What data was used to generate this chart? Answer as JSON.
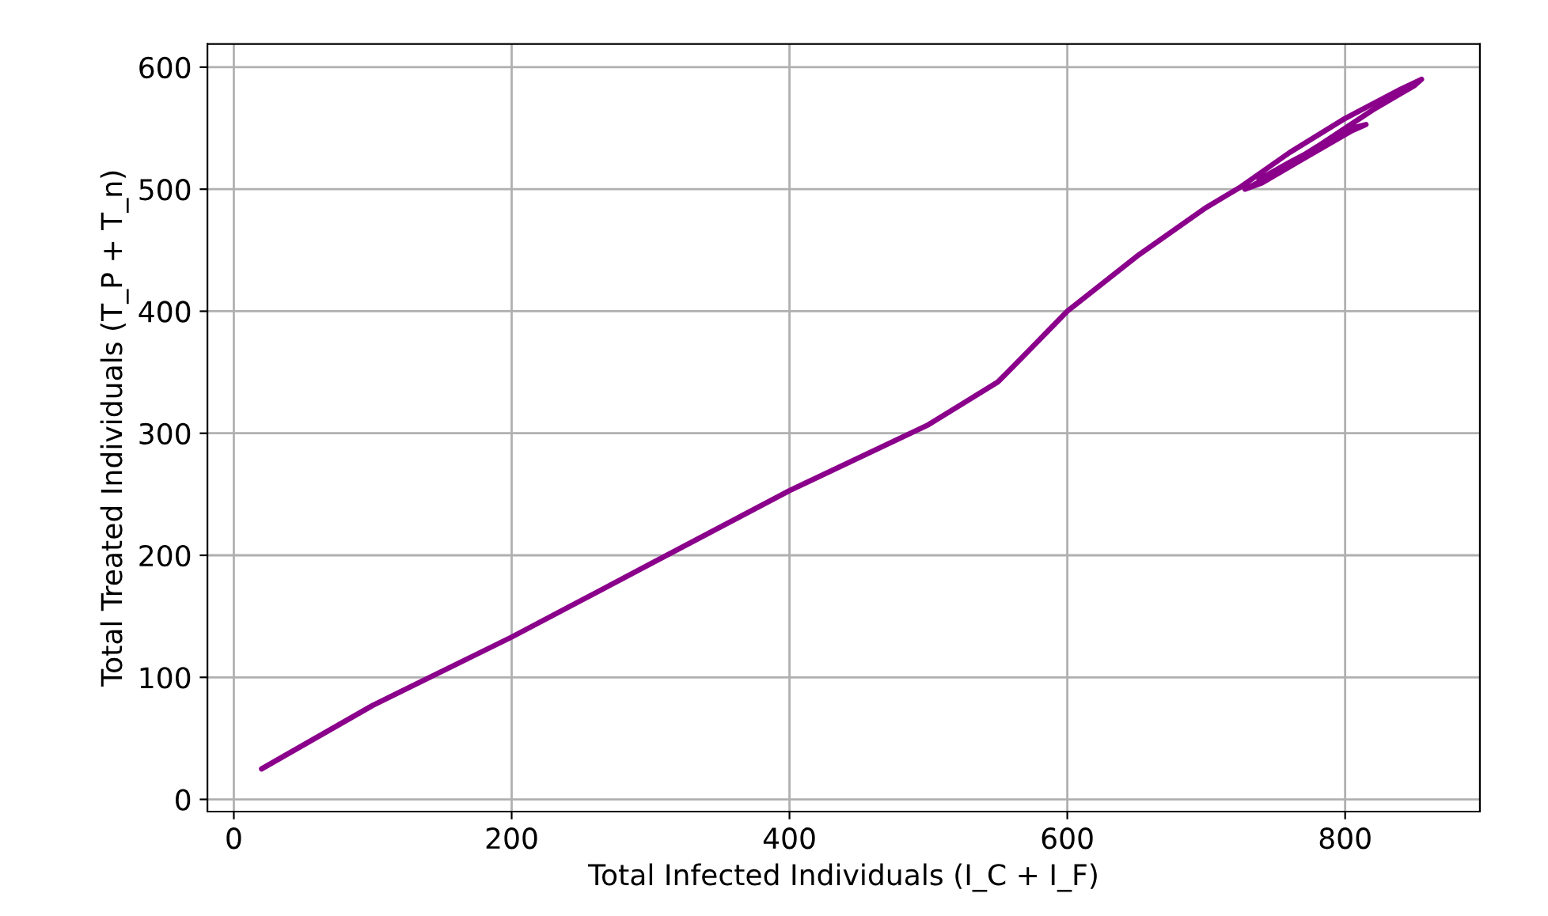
{
  "chart_data": {
    "type": "line",
    "xlabel": "Total Infected Individuals (I_C + I_F)",
    "ylabel": "Total Treated Individuals (T_P + T_n)",
    "xlim": [
      -19,
      897
    ],
    "ylim": [
      -10,
      619
    ],
    "xticks": [
      0,
      200,
      400,
      600,
      800
    ],
    "yticks": [
      0,
      100,
      200,
      300,
      400,
      500,
      600
    ],
    "grid": true,
    "marker": "none",
    "line_style": "solid",
    "series": [
      {
        "color": "#8b008b",
        "x": [
          20,
          100,
          200,
          300,
          400,
          500,
          550,
          570,
          600,
          650,
          700,
          725,
          760,
          800,
          840,
          855,
          850,
          820,
          780,
          745,
          728,
          740,
          770,
          805,
          815,
          805,
          775,
          750,
          738,
          760,
          790,
          805
        ],
        "values": [
          25,
          77,
          133,
          193,
          253,
          307,
          342,
          365,
          400,
          445,
          485,
          502,
          530,
          558,
          582,
          590,
          585,
          565,
          535,
          510,
          500,
          505,
          525,
          548,
          553,
          550,
          530,
          515,
          508,
          522,
          540,
          548
        ]
      }
    ]
  }
}
